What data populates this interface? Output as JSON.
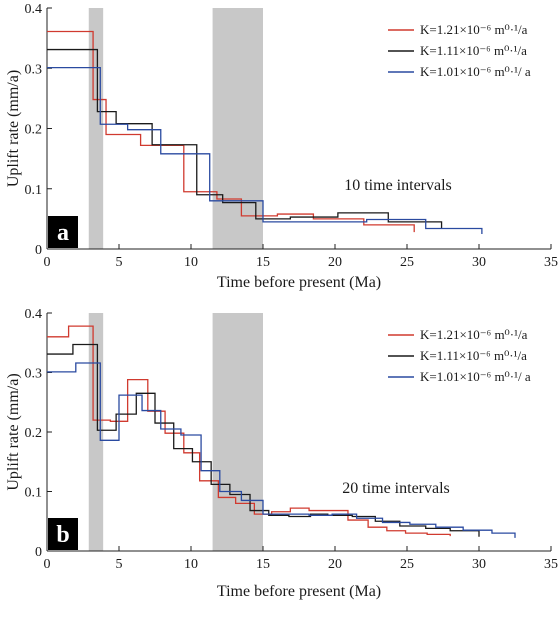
{
  "chart_data": [
    {
      "type": "line",
      "panel_label": "a",
      "annotation": "10 time intervals",
      "xlabel": "Time before present (Ma)",
      "ylabel": "Uplift rate (mm/a)",
      "xlim": [
        0,
        35
      ],
      "ylim": [
        0,
        0.4
      ],
      "xticks": [
        "0",
        "5",
        "10",
        "15",
        "20",
        "25",
        "30",
        "35"
      ],
      "yticks": [
        "0",
        "0.1",
        "0.2",
        "0.3",
        "0.4"
      ],
      "shaded_intervals": [
        [
          2.9,
          3.9
        ],
        [
          11.5,
          15.0
        ]
      ],
      "legend_placement": "top-right",
      "series": [
        {
          "name": "K=1.21×10⁻⁶ m⁰·¹/a",
          "color": "#d03a2f",
          "x": [
            0,
            3.2,
            4.1,
            6.5,
            9.5,
            11.8,
            13.5,
            16.0,
            18.5,
            22.0,
            25.5
          ],
          "y": [
            0.361,
            0.248,
            0.19,
            0.172,
            0.095,
            0.083,
            0.055,
            0.058,
            0.05,
            0.04,
            0.028
          ]
        },
        {
          "name": "K=1.11×10⁻⁶ m⁰·¹/a",
          "color": "#1a1a1a",
          "x": [
            0,
            3.5,
            4.8,
            7.3,
            10.4,
            12.2,
            14.5,
            16.9,
            20.2,
            23.7,
            27.4
          ],
          "y": [
            0.331,
            0.228,
            0.208,
            0.173,
            0.09,
            0.077,
            0.05,
            0.053,
            0.06,
            0.045,
            0.034
          ]
        },
        {
          "name": "K=1.01×10⁻⁶ m⁰·¹/ a",
          "color": "#2a4aa0",
          "x": [
            0,
            3.7,
            5.6,
            7.9,
            11.3,
            12.7,
            15.0,
            18.4,
            22.2,
            26.3,
            30.2
          ],
          "y": [
            0.301,
            0.207,
            0.198,
            0.158,
            0.08,
            0.08,
            0.045,
            0.045,
            0.049,
            0.034,
            0.025
          ]
        }
      ]
    },
    {
      "type": "line",
      "panel_label": "b",
      "annotation": "20 time intervals",
      "xlabel": "Time before present (Ma)",
      "ylabel": "Uplift rate  (mm/a)",
      "xlim": [
        0,
        35
      ],
      "ylim": [
        0,
        0.4
      ],
      "xticks": [
        "0",
        "5",
        "10",
        "15",
        "20",
        "25",
        "30",
        "35"
      ],
      "yticks": [
        "0",
        "0.1",
        "0.2",
        "0.3",
        "0.4"
      ],
      "shaded_intervals": [
        [
          2.9,
          3.9
        ],
        [
          11.5,
          15.0
        ]
      ],
      "legend_placement": "top-right",
      "series": [
        {
          "name": "K=1.21×10⁻⁶ m⁰·¹/a",
          "color": "#d03a2f",
          "x": [
            0,
            1.5,
            3.2,
            4.4,
            5.6,
            7.0,
            8.2,
            9.5,
            10.6,
            11.9,
            13.1,
            14.4,
            15.6,
            16.9,
            18.2,
            20.9,
            22.3,
            23.6,
            24.9,
            26.4,
            28.0
          ],
          "y": [
            0.36,
            0.378,
            0.22,
            0.218,
            0.288,
            0.235,
            0.198,
            0.165,
            0.118,
            0.09,
            0.08,
            0.062,
            0.066,
            0.072,
            0.068,
            0.052,
            0.04,
            0.034,
            0.03,
            0.028,
            0.025
          ]
        },
        {
          "name": "K=1.11×10⁻⁶ m⁰·¹/a",
          "color": "#1a1a1a",
          "x": [
            0,
            1.8,
            3.5,
            4.8,
            6.2,
            7.5,
            8.8,
            10.1,
            11.4,
            12.7,
            14.1,
            15.4,
            16.8,
            18.3,
            19.5,
            21.2,
            22.8,
            24.5,
            26.3,
            28.0,
            30.0
          ],
          "y": [
            0.331,
            0.347,
            0.203,
            0.23,
            0.265,
            0.215,
            0.172,
            0.15,
            0.112,
            0.095,
            0.068,
            0.06,
            0.058,
            0.062,
            0.06,
            0.058,
            0.05,
            0.042,
            0.038,
            0.034,
            0.024
          ]
        },
        {
          "name": "K=1.01×10⁻⁶ m⁰·¹/ a",
          "color": "#2a4aa0",
          "x": [
            0,
            2.0,
            3.7,
            5.0,
            6.6,
            7.9,
            9.3,
            10.7,
            12.0,
            13.5,
            15.0,
            16.5,
            18.2,
            19.8,
            21.5,
            23.3,
            25.2,
            27.0,
            28.9,
            30.9,
            32.5
          ],
          "y": [
            0.301,
            0.316,
            0.186,
            0.262,
            0.236,
            0.205,
            0.195,
            0.135,
            0.1,
            0.085,
            0.062,
            0.062,
            0.06,
            0.062,
            0.055,
            0.048,
            0.045,
            0.04,
            0.035,
            0.03,
            0.022
          ]
        }
      ]
    }
  ]
}
